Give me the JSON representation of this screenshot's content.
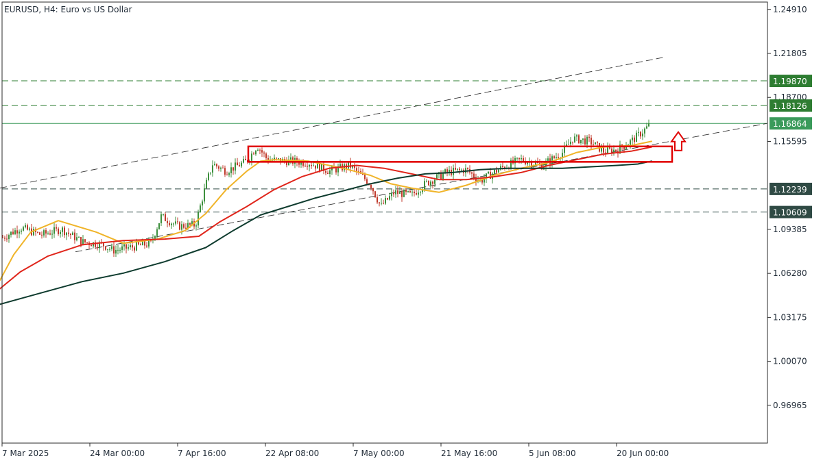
{
  "chart_title": "EURUSD, H4:  Euro vs US Dollar",
  "colors": {
    "background": "#ffffff",
    "frame": "#2a2a2a",
    "candle_up": "#3c8f3c",
    "candle_down": "#c0392b",
    "ma_fast": "#f0b429",
    "ma_mid": "#e0251b",
    "ma_slow": "#0e3b2e",
    "level_green": "#2e7d32",
    "level_dark": "#2f4a44",
    "price_current": "#3a9a5a",
    "zone": "#e00000",
    "channel": "#333333"
  },
  "chart_data": {
    "type": "candlestick",
    "title": "EURUSD, H4:  Euro vs US Dollar",
    "ylim": [
      0.943,
      1.2543
    ],
    "y_ticks": [
      "1.24910",
      "1.21805",
      "1.18700",
      "1.15595",
      "1.09385",
      "1.06280",
      "1.03175",
      "1.00070",
      "0.96965"
    ],
    "x_ticks": [
      "7 Mar 2025",
      "24 Mar 00:00",
      "7 Apr 16:00",
      "22 Apr 08:00",
      "7 May 00:00",
      "21 May 16:00",
      "5 Jun 08:00",
      "20 Jun 00:00"
    ],
    "horizontal_levels": [
      {
        "price": 1.1987,
        "label": "1.19870",
        "style": "dashed",
        "badge": "green"
      },
      {
        "price": 1.18126,
        "label": "1.18126",
        "style": "dashed",
        "badge": "green"
      },
      {
        "price": 1.16864,
        "label": "1.16864",
        "style": "solid",
        "badge": "current"
      },
      {
        "price": 1.12239,
        "label": "1.12239",
        "style": "dashed",
        "badge": "dark"
      },
      {
        "price": 1.10609,
        "label": "1.10609",
        "style": "dashed",
        "badge": "dark"
      }
    ],
    "moving_averages": [
      {
        "color_key": "ma_fast",
        "points": [
          [
            0,
            1.058
          ],
          [
            20,
            1.076
          ],
          [
            45,
            1.092
          ],
          [
            85,
            1.1
          ],
          [
            140,
            1.092
          ],
          [
            180,
            1.084
          ],
          [
            230,
            1.087
          ],
          [
            270,
            1.093
          ],
          [
            300,
            1.105
          ],
          [
            330,
            1.122
          ],
          [
            360,
            1.135
          ],
          [
            380,
            1.142
          ],
          [
            400,
            1.143
          ],
          [
            450,
            1.142
          ],
          [
            500,
            1.137
          ],
          [
            540,
            1.132
          ],
          [
            570,
            1.126
          ],
          [
            600,
            1.123
          ],
          [
            640,
            1.12
          ],
          [
            680,
            1.125
          ],
          [
            720,
            1.132
          ],
          [
            760,
            1.137
          ],
          [
            800,
            1.141
          ],
          [
            840,
            1.148
          ],
          [
            880,
            1.152
          ],
          [
            920,
            1.153
          ],
          [
            950,
            1.156
          ]
        ]
      },
      {
        "color_key": "ma_mid",
        "points": [
          [
            0,
            1.052
          ],
          [
            30,
            1.064
          ],
          [
            70,
            1.075
          ],
          [
            120,
            1.083
          ],
          [
            180,
            1.086
          ],
          [
            240,
            1.087
          ],
          [
            290,
            1.089
          ],
          [
            320,
            1.099
          ],
          [
            360,
            1.11
          ],
          [
            400,
            1.122
          ],
          [
            440,
            1.131
          ],
          [
            480,
            1.137
          ],
          [
            520,
            1.139
          ],
          [
            560,
            1.137
          ],
          [
            600,
            1.133
          ],
          [
            640,
            1.129
          ],
          [
            680,
            1.129
          ],
          [
            720,
            1.131
          ],
          [
            760,
            1.134
          ],
          [
            800,
            1.139
          ],
          [
            840,
            1.143
          ],
          [
            880,
            1.147
          ],
          [
            920,
            1.149
          ],
          [
            950,
            1.152
          ]
        ]
      },
      {
        "color_key": "ma_slow",
        "points": [
          [
            0,
            1.041
          ],
          [
            60,
            1.049
          ],
          [
            120,
            1.057
          ],
          [
            180,
            1.063
          ],
          [
            240,
            1.071
          ],
          [
            300,
            1.081
          ],
          [
            340,
            1.093
          ],
          [
            380,
            1.104
          ],
          [
            420,
            1.11
          ],
          [
            460,
            1.116
          ],
          [
            500,
            1.121
          ],
          [
            540,
            1.126
          ],
          [
            580,
            1.13
          ],
          [
            620,
            1.133
          ],
          [
            660,
            1.134
          ],
          [
            700,
            1.136
          ],
          [
            740,
            1.137
          ],
          [
            780,
            1.137
          ],
          [
            820,
            1.137
          ],
          [
            860,
            1.138
          ],
          [
            900,
            1.139
          ],
          [
            930,
            1.14
          ],
          [
            950,
            1.142
          ]
        ]
      }
    ],
    "channel_lines": [
      {
        "from": [
          0,
          1.123
        ],
        "to": [
          970,
          1.2155
        ]
      },
      {
        "from": [
          110,
          1.078
        ],
        "to": [
          1118,
          1.1686
        ]
      }
    ],
    "zone": {
      "x_start": 362,
      "x_end": 980,
      "price_top": 1.1524,
      "price_bottom": 1.1415
    },
    "arrow": {
      "x": 989,
      "price_base": 1.1495,
      "direction": "up"
    },
    "candles": {
      "x_start": 4,
      "x_end": 946,
      "seed": 7,
      "anchors": [
        [
          4,
          1.088
        ],
        [
          30,
          1.095
        ],
        [
          60,
          1.09
        ],
        [
          90,
          1.094
        ],
        [
          120,
          1.085
        ],
        [
          150,
          1.083
        ],
        [
          165,
          1.079
        ],
        [
          200,
          1.082
        ],
        [
          220,
          1.084
        ],
        [
          235,
          1.103
        ],
        [
          260,
          1.096
        ],
        [
          285,
          1.097
        ],
        [
          300,
          1.125
        ],
        [
          310,
          1.14
        ],
        [
          330,
          1.135
        ],
        [
          360,
          1.142
        ],
        [
          375,
          1.153
        ],
        [
          390,
          1.143
        ],
        [
          420,
          1.142
        ],
        [
          450,
          1.141
        ],
        [
          480,
          1.135
        ],
        [
          510,
          1.139
        ],
        [
          540,
          1.126
        ],
        [
          555,
          1.11
        ],
        [
          575,
          1.12
        ],
        [
          600,
          1.118
        ],
        [
          620,
          1.126
        ],
        [
          650,
          1.134
        ],
        [
          680,
          1.136
        ],
        [
          700,
          1.128
        ],
        [
          730,
          1.137
        ],
        [
          760,
          1.143
        ],
        [
          790,
          1.139
        ],
        [
          820,
          1.148
        ],
        [
          835,
          1.158
        ],
        [
          860,
          1.156
        ],
        [
          880,
          1.149
        ],
        [
          900,
          1.15
        ],
        [
          920,
          1.156
        ],
        [
          935,
          1.162
        ],
        [
          946,
          1.167
        ]
      ]
    }
  }
}
